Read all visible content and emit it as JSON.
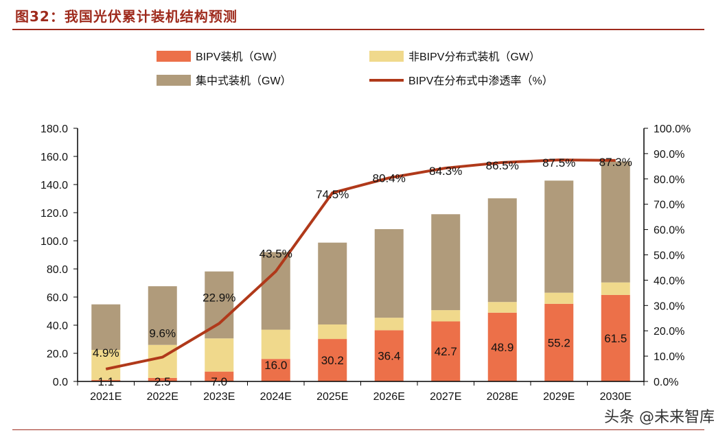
{
  "title": "图32：我国光伏累计装机结构预测",
  "watermark": "头条 @未来智库",
  "colors": {
    "bipv": "#ec7049",
    "non_bipv": "#f0d98c",
    "centralized": "#b09b7b",
    "penetration": "#b0391a",
    "title": "#9e2a1c"
  },
  "chart_data": {
    "type": "bar",
    "stacked": true,
    "categories": [
      "2021E",
      "2022E",
      "2023E",
      "2024E",
      "2025E",
      "2026E",
      "2027E",
      "2028E",
      "2029E",
      "2030E"
    ],
    "series": [
      {
        "name": "BIPV装机（GW）",
        "type": "bar",
        "axis": "left",
        "values": [
          1.1,
          2.5,
          7.0,
          16.0,
          30.2,
          36.4,
          42.7,
          48.9,
          55.2,
          61.5
        ],
        "labels": [
          "1.1",
          "2.5",
          "7.0",
          "16.0",
          "30.2",
          "36.4",
          "42.7",
          "48.9",
          "55.2",
          "61.5"
        ]
      },
      {
        "name": "非BIPV分布式装机（GW）",
        "type": "bar",
        "axis": "left",
        "values": [
          21.3,
          23.5,
          23.6,
          20.8,
          10.3,
          8.9,
          8.0,
          7.6,
          7.9,
          8.9
        ]
      },
      {
        "name": "集中式装机（GW）",
        "type": "bar",
        "axis": "left",
        "values": [
          32.4,
          41.7,
          47.6,
          55.2,
          58.2,
          63.0,
          68.2,
          73.7,
          79.7,
          86.0
        ]
      },
      {
        "name": "BIPV在分布式中渗透率（%）",
        "type": "line",
        "axis": "right",
        "values": [
          4.9,
          9.6,
          22.9,
          43.5,
          74.5,
          80.4,
          84.3,
          86.5,
          87.5,
          87.3
        ],
        "labels": [
          "4.9%",
          "9.6%",
          "22.9%",
          "43.5%",
          "74.5%",
          "80.4%",
          "84.3%",
          "86.5%",
          "87.5%",
          "87.3%"
        ]
      }
    ],
    "y_left": {
      "range": [
        0,
        180
      ],
      "ticks": [
        "0.0",
        "20.0",
        "40.0",
        "60.0",
        "80.0",
        "100.0",
        "120.0",
        "140.0",
        "160.0",
        "180.0"
      ]
    },
    "y_right": {
      "range": [
        0,
        100
      ],
      "ticks": [
        "0.0%",
        "10.0%",
        "20.0%",
        "30.0%",
        "40.0%",
        "50.0%",
        "60.0%",
        "70.0%",
        "80.0%",
        "90.0%",
        "100.0%"
      ]
    },
    "legend": "top",
    "grid": false
  }
}
